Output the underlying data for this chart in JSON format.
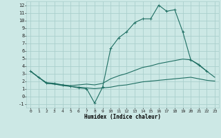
{
  "xlabel": "Humidex (Indice chaleur)",
  "xlim": [
    -0.5,
    23.5
  ],
  "ylim": [
    -1.5,
    12.5
  ],
  "xticks": [
    0,
    1,
    2,
    3,
    4,
    5,
    6,
    7,
    8,
    9,
    10,
    11,
    12,
    13,
    14,
    15,
    16,
    17,
    18,
    19,
    20,
    21,
    22,
    23
  ],
  "yticks": [
    -1,
    0,
    1,
    2,
    3,
    4,
    5,
    6,
    7,
    8,
    9,
    10,
    11,
    12
  ],
  "bg_color": "#cce8e5",
  "grid_color": "#aacfcc",
  "line_color": "#1e6e62",
  "line1_x": [
    0,
    1,
    2,
    3,
    4,
    5,
    6,
    7,
    8,
    9,
    10,
    11,
    12,
    13,
    14,
    15,
    16,
    17,
    18,
    19,
    20,
    21,
    22
  ],
  "line1_y": [
    3.3,
    2.5,
    1.8,
    1.7,
    1.5,
    1.3,
    1.1,
    1.0,
    -0.9,
    1.2,
    6.3,
    7.7,
    8.5,
    9.7,
    10.2,
    10.2,
    12.0,
    11.2,
    11.4,
    8.5,
    4.8,
    4.1,
    3.3
  ],
  "line2_x": [
    0,
    1,
    2,
    3,
    4,
    5,
    6,
    7,
    8,
    9,
    10,
    11,
    12,
    13,
    14,
    15,
    16,
    17,
    18,
    19,
    20,
    21,
    22,
    23
  ],
  "line2_y": [
    3.3,
    2.5,
    1.7,
    1.6,
    1.5,
    1.4,
    1.5,
    1.6,
    1.5,
    1.7,
    2.3,
    2.7,
    3.0,
    3.4,
    3.8,
    4.0,
    4.3,
    4.5,
    4.7,
    4.9,
    4.8,
    4.2,
    3.3,
    2.5
  ],
  "line3_x": [
    0,
    1,
    2,
    3,
    4,
    5,
    6,
    7,
    8,
    9,
    10,
    11,
    12,
    13,
    14,
    15,
    16,
    17,
    18,
    19,
    20,
    21,
    22,
    23
  ],
  "line3_y": [
    3.3,
    2.5,
    1.7,
    1.6,
    1.4,
    1.3,
    1.2,
    1.1,
    1.0,
    1.1,
    1.2,
    1.4,
    1.5,
    1.7,
    1.9,
    2.0,
    2.1,
    2.2,
    2.3,
    2.4,
    2.5,
    2.3,
    2.1,
    2.0
  ]
}
